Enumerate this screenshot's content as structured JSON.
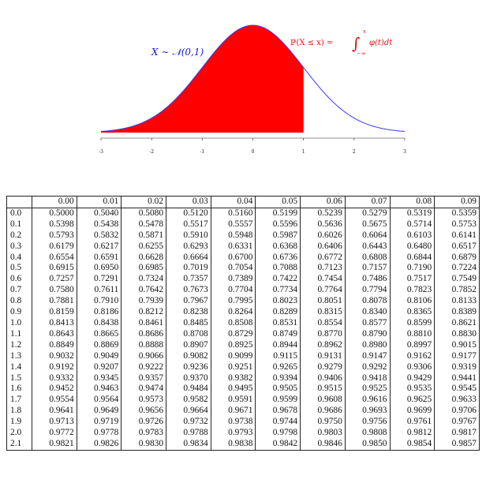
{
  "figure": {
    "left_annotation": "X ∼ 𝒩(0,1)",
    "right_annotation": {
      "prefix": "ℙ(X ≤ x) = ",
      "integral": "∫",
      "upper": "x",
      "lower": "−∞",
      "integrand": "φ(t)dt"
    },
    "colors": {
      "shade": "#ff0000",
      "curve": "#3a3aff",
      "text_left": "#1a1acc",
      "text_right": "#dd1111"
    }
  },
  "chart_data": {
    "type": "area",
    "title": "",
    "xlabel": "",
    "ylabel": "",
    "xlim": [
      -3,
      3
    ],
    "x_ticks": [
      "-3",
      "-2",
      "-1",
      "0",
      "1",
      "2",
      "3"
    ],
    "curve": "standard normal density",
    "shaded_upper_bound": 1
  },
  "table": {
    "columns": [
      "0.00",
      "0.01",
      "0.02",
      "0.03",
      "0.04",
      "0.05",
      "0.06",
      "0.07",
      "0.08",
      "0.09"
    ],
    "rows": [
      [
        "0.0",
        "0.5000",
        "0.5040",
        "0.5080",
        "0.5120",
        "0.5160",
        "0.5199",
        "0.5239",
        "0.5279",
        "0.5319",
        "0.5359"
      ],
      [
        "0.1",
        "0.5398",
        "0.5438",
        "0.5478",
        "0.5517",
        "0.5557",
        "0.5596",
        "0.5636",
        "0.5675",
        "0.5714",
        "0.5753"
      ],
      [
        "0.2",
        "0.5793",
        "0.5832",
        "0.5871",
        "0.5910",
        "0.5948",
        "0.5987",
        "0.6026",
        "0.6064",
        "0.6103",
        "0.6141"
      ],
      [
        "0.3",
        "0.6179",
        "0.6217",
        "0.6255",
        "0.6293",
        "0.6331",
        "0.6368",
        "0.6406",
        "0.6443",
        "0.6480",
        "0.6517"
      ],
      [
        "0.4",
        "0.6554",
        "0.6591",
        "0.6628",
        "0.6664",
        "0.6700",
        "0.6736",
        "0.6772",
        "0.6808",
        "0.6844",
        "0.6879"
      ],
      [
        "0.5",
        "0.6915",
        "0.6950",
        "0.6985",
        "0.7019",
        "0.7054",
        "0.7088",
        "0.7123",
        "0.7157",
        "0.7190",
        "0.7224"
      ],
      [
        "0.6",
        "0.7257",
        "0.7291",
        "0.7324",
        "0.7357",
        "0.7389",
        "0.7422",
        "0.7454",
        "0.7486",
        "0.7517",
        "0.7549"
      ],
      [
        "0.7",
        "0.7580",
        "0.7611",
        "0.7642",
        "0.7673",
        "0.7704",
        "0.7734",
        "0.7764",
        "0.7794",
        "0.7823",
        "0.7852"
      ],
      [
        "0.8",
        "0.7881",
        "0.7910",
        "0.7939",
        "0.7967",
        "0.7995",
        "0.8023",
        "0.8051",
        "0.8078",
        "0.8106",
        "0.8133"
      ],
      [
        "0.9",
        "0.8159",
        "0.8186",
        "0.8212",
        "0.8238",
        "0.8264",
        "0.8289",
        "0.8315",
        "0.8340",
        "0.8365",
        "0.8389"
      ],
      [
        "1.0",
        "0.8413",
        "0.8438",
        "0.8461",
        "0.8485",
        "0.8508",
        "0.8531",
        "0.8554",
        "0.8577",
        "0.8599",
        "0.8621"
      ],
      [
        "1.1",
        "0.8643",
        "0.8665",
        "0.8686",
        "0.8708",
        "0.8729",
        "0.8749",
        "0.8770",
        "0.8790",
        "0.8810",
        "0.8830"
      ],
      [
        "1.2",
        "0.8849",
        "0.8869",
        "0.8888",
        "0.8907",
        "0.8925",
        "0.8944",
        "0.8962",
        "0.8980",
        "0.8997",
        "0.9015"
      ],
      [
        "1.3",
        "0.9032",
        "0.9049",
        "0.9066",
        "0.9082",
        "0.9099",
        "0.9115",
        "0.9131",
        "0.9147",
        "0.9162",
        "0.9177"
      ],
      [
        "1.4",
        "0.9192",
        "0.9207",
        "0.9222",
        "0.9236",
        "0.9251",
        "0.9265",
        "0.9279",
        "0.9292",
        "0.9306",
        "0.9319"
      ],
      [
        "1.5",
        "0.9332",
        "0.9345",
        "0.9357",
        "0.9370",
        "0.9382",
        "0.9394",
        "0.9406",
        "0.9418",
        "0.9429",
        "0.9441"
      ],
      [
        "1.6",
        "0.9452",
        "0.9463",
        "0.9474",
        "0.9484",
        "0.9495",
        "0.9505",
        "0.9515",
        "0.9525",
        "0.9535",
        "0.9545"
      ],
      [
        "1.7",
        "0.9554",
        "0.9564",
        "0.9573",
        "0.9582",
        "0.9591",
        "0.9599",
        "0.9608",
        "0.9616",
        "0.9625",
        "0.9633"
      ],
      [
        "1.8",
        "0.9641",
        "0.9649",
        "0.9656",
        "0.9664",
        "0.9671",
        "0.9678",
        "0.9686",
        "0.9693",
        "0.9699",
        "0.9706"
      ],
      [
        "1.9",
        "0.9713",
        "0.9719",
        "0.9726",
        "0.9732",
        "0.9738",
        "0.9744",
        "0.9750",
        "0.9756",
        "0.9761",
        "0.9767"
      ],
      [
        "2.0",
        "0.9772",
        "0.9778",
        "0.9783",
        "0.9788",
        "0.9793",
        "0.9798",
        "0.9803",
        "0.9808",
        "0.9812",
        "0.9817"
      ],
      [
        "2.1",
        "0.9821",
        "0.9826",
        "0.9830",
        "0.9834",
        "0.9838",
        "0.9842",
        "0.9846",
        "0.9850",
        "0.9854",
        "0.9857"
      ]
    ]
  }
}
